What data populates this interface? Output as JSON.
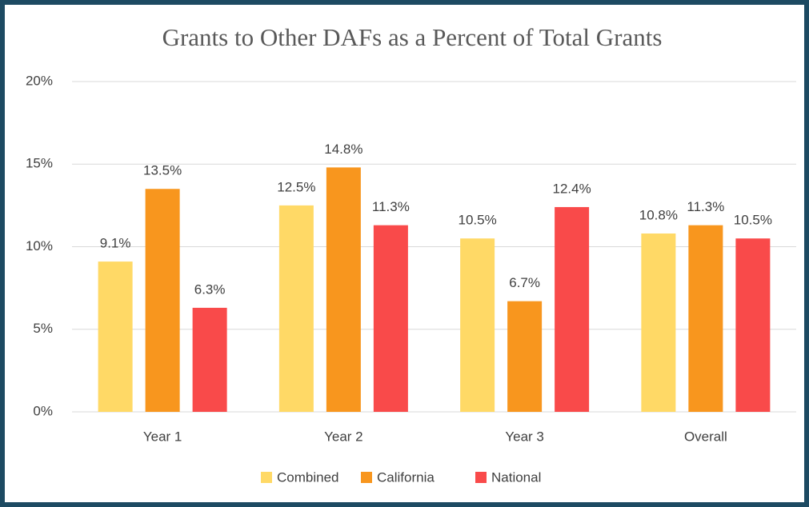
{
  "chart_data": {
    "type": "bar",
    "title": "Grants to Other DAFs as a Percent of Total Grants",
    "categories": [
      "Year 1",
      "Year 2",
      "Year 3",
      "Overall"
    ],
    "series": [
      {
        "name": "Combined",
        "color": "#ffd966",
        "values": [
          9.1,
          12.5,
          10.5,
          10.8
        ],
        "value_labels": [
          "9.1%",
          "12.5%",
          "10.5%",
          "10.8%"
        ]
      },
      {
        "name": "California",
        "color": "#f8961e",
        "values": [
          13.5,
          14.8,
          6.7,
          11.3
        ],
        "value_labels": [
          "13.5%",
          "14.8%",
          "6.7%",
          "11.3%"
        ]
      },
      {
        "name": "National",
        "color": "#f94a4a",
        "values": [
          6.3,
          11.3,
          12.4,
          10.5
        ],
        "value_labels": [
          "6.3%",
          "11.3%",
          "12.4%",
          "10.5%"
        ]
      }
    ],
    "ylim": [
      0,
      20
    ],
    "yticks": [
      {
        "value": 0,
        "label": "0%"
      },
      {
        "value": 5,
        "label": "5%"
      },
      {
        "value": 10,
        "label": "10%"
      },
      {
        "value": 15,
        "label": "15%"
      },
      {
        "value": 20,
        "label": "20%"
      }
    ],
    "grid": true,
    "legend": "bottom"
  }
}
